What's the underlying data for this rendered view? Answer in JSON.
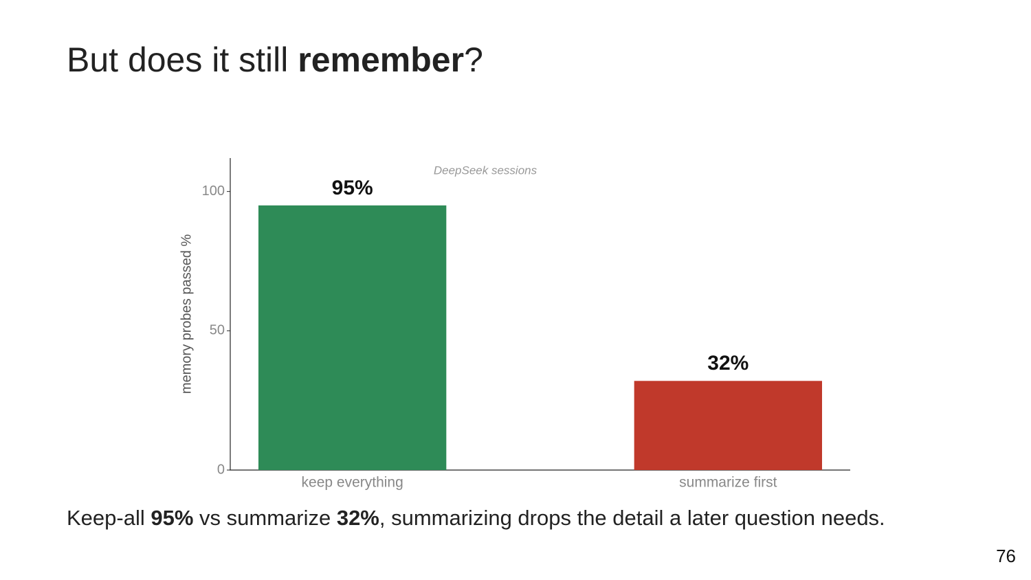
{
  "slide": {
    "title": {
      "plain": "But does it still ",
      "bold": "remember",
      "end": "?"
    },
    "caption": {
      "a": "Keep-all ",
      "b": "95%",
      "c": " vs summarize ",
      "d": "32%",
      "e": ", summarizing drops the detail a later question needs."
    },
    "page_number": 76
  },
  "chart_data": {
    "type": "bar",
    "subtitle": "DeepSeek sessions",
    "y_label": "memory probes passed %",
    "categories": [
      "keep everything",
      "summarize first"
    ],
    "values": [
      95,
      32
    ],
    "value_labels": [
      "95%",
      "32%"
    ],
    "colors": [
      "#2e8b57",
      "#c0392b"
    ],
    "ylim": [
      0,
      112
    ],
    "yticks": [
      0,
      50,
      100
    ],
    "grid": false
  }
}
